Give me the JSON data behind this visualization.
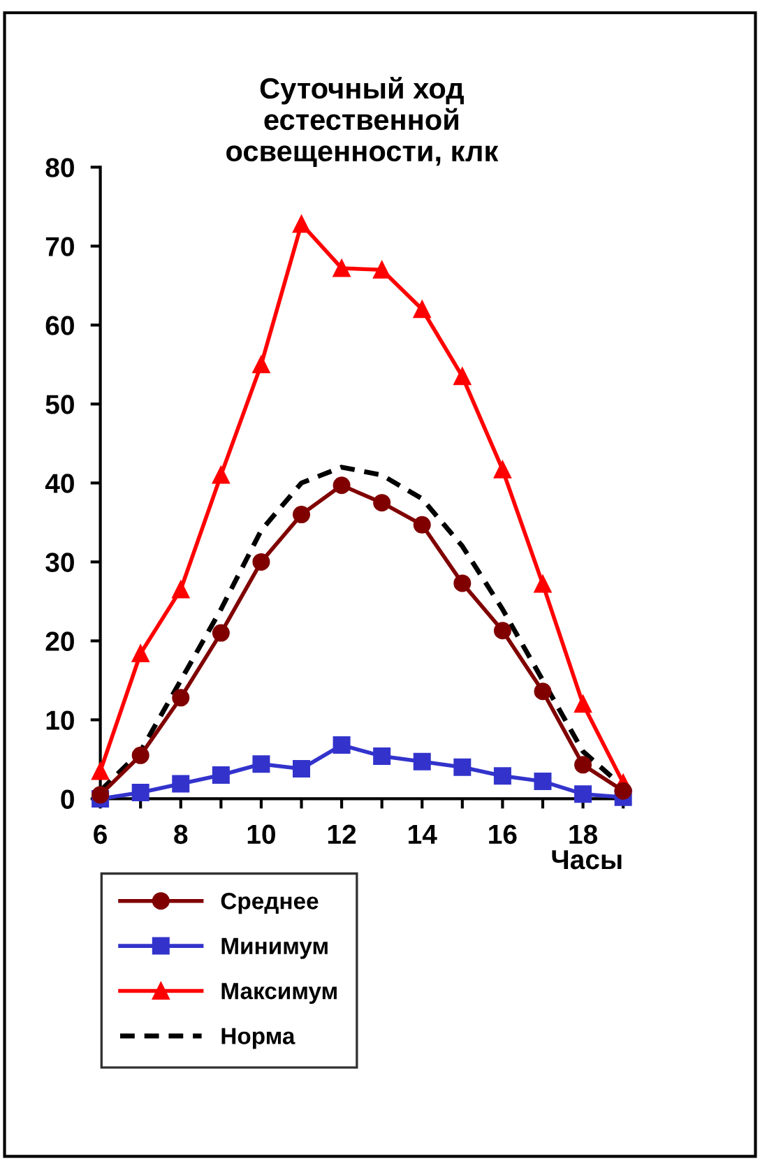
{
  "chart_data": {
    "type": "line",
    "title": "Суточный ход\nестественной\nосвещенности, клк",
    "xlabel": "Часы",
    "x": [
      6,
      7,
      8,
      9,
      10,
      11,
      12,
      13,
      14,
      15,
      16,
      17,
      18,
      19
    ],
    "series": [
      {
        "name": "Среднее",
        "color": "#800000",
        "marker": "circle",
        "line_style": "solid",
        "values": [
          0.5,
          5.5,
          12.8,
          21,
          30,
          36,
          39.7,
          37.5,
          34.7,
          27.3,
          21.3,
          13.6,
          4.3,
          1
        ]
      },
      {
        "name": "Минимум",
        "color": "#3333cc",
        "marker": "square",
        "line_style": "solid",
        "values": [
          0,
          0.8,
          1.9,
          3,
          4.4,
          3.8,
          6.8,
          5.4,
          4.7,
          4,
          2.9,
          2.2,
          0.6,
          0.2
        ]
      },
      {
        "name": "Максимум",
        "color": "#ff0000",
        "marker": "triangle",
        "line_style": "solid",
        "values": [
          3.5,
          18.4,
          26.5,
          41,
          55,
          72.8,
          67.2,
          67,
          62,
          53.5,
          41.7,
          27.2,
          12,
          2
        ]
      },
      {
        "name": "Норма",
        "color": "#000000",
        "marker": "none",
        "line_style": "dashed",
        "values": [
          1,
          6,
          15,
          24,
          34,
          40,
          42,
          41,
          38,
          32,
          24,
          15,
          6,
          1.5
        ]
      }
    ],
    "xlim": [
      6,
      19
    ],
    "ylim": [
      0,
      80
    ],
    "xticks": [
      6,
      {
        "value": 7,
        "label": null
      },
      8,
      {
        "value": 9,
        "label": null
      },
      10,
      {
        "value": 11,
        "label": null
      },
      12,
      {
        "value": 13,
        "label": null
      },
      14,
      {
        "value": 15,
        "label": null
      },
      16,
      {
        "value": 17,
        "label": null
      },
      18,
      {
        "value": 19,
        "label": null
      }
    ],
    "yticks": [
      0,
      10,
      20,
      30,
      40,
      50,
      60,
      70,
      80
    ],
    "grid": false,
    "legend": "bottom left"
  }
}
